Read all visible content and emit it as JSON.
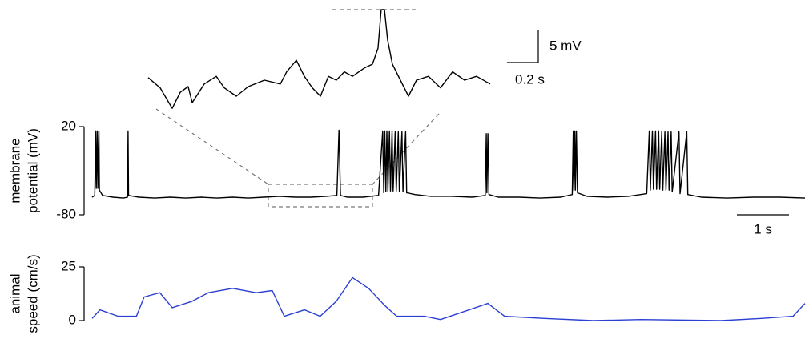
{
  "chart_data": [
    {
      "type": "line",
      "ylabel": [
        "membrane",
        "potential (mV)"
      ],
      "ylim": [
        -80,
        20
      ],
      "yticks": [
        20,
        -80
      ],
      "xlim": [
        0,
        13.69
      ],
      "scale_x": {
        "value": 1,
        "label": "1 s"
      },
      "series": [
        {
          "color": "#000000",
          "x": [
            0,
            0.05,
            0.07,
            0.08,
            0.1,
            0.11,
            0.13,
            0.14,
            0.2,
            0.4,
            0.6,
            0.68,
            0.69,
            0.7,
            0.9,
            1.2,
            1.5,
            1.8,
            2.1,
            2.4,
            2.7,
            3.0,
            3.3,
            3.6,
            3.9,
            4.2,
            4.5,
            4.7,
            4.74,
            4.77,
            4.9,
            5.2,
            5.5,
            5.58,
            5.6,
            5.62,
            5.64,
            5.66,
            5.68,
            5.71,
            5.73,
            5.76,
            5.78,
            5.82,
            5.84,
            5.88,
            5.9,
            5.95,
            5.97,
            6.02,
            6.04,
            6.2,
            6.5,
            6.9,
            7.3,
            7.55,
            7.57,
            7.58,
            7.6,
            7.62,
            7.8,
            8.2,
            8.6,
            9.0,
            9.22,
            9.24,
            9.25,
            9.27,
            9.28,
            9.3,
            9.32,
            9.5,
            9.9,
            10.3,
            10.65,
            10.7,
            10.72,
            10.76,
            10.78,
            10.82,
            10.84,
            10.88,
            10.9,
            10.94,
            10.96,
            11.0,
            11.02,
            11.06,
            11.08,
            11.12,
            11.14,
            11.27,
            11.29,
            11.42,
            11.44,
            11.7,
            12.2,
            12.7,
            13.2,
            13.69
          ],
          "values": [
            -60,
            -58,
            15,
            -50,
            15,
            -50,
            15,
            -52,
            -58,
            -60,
            -61,
            -60,
            15,
            -58,
            -60,
            -61,
            -60,
            -61,
            -60,
            -61,
            -60,
            -61,
            -60,
            -59,
            -60,
            -60,
            -59,
            -58,
            16,
            -58,
            -60,
            -60,
            -58,
            15,
            -55,
            15,
            -54,
            15,
            -54,
            15,
            -53,
            15,
            -53,
            14,
            -53,
            14,
            -54,
            14,
            -54,
            14,
            -55,
            -57,
            -59,
            -59,
            -60,
            -58,
            12,
            -55,
            12,
            -57,
            -60,
            -60,
            -61,
            -60,
            -57,
            15,
            -52,
            15,
            -52,
            15,
            -55,
            -59,
            -60,
            -59,
            -56,
            15,
            -52,
            15,
            -51,
            15,
            -51,
            15,
            -51,
            15,
            -52,
            14,
            -52,
            14,
            -52,
            14,
            -54,
            14,
            -56,
            14,
            -57,
            -60,
            -61,
            -60,
            -60,
            -61
          ]
        }
      ]
    },
    {
      "type": "line",
      "ylim": [
        -64.4,
        -48.4
      ],
      "xlim": [
        0,
        2.19
      ],
      "scale_x": {
        "value": 0.2,
        "label": "0.2 s"
      },
      "scale_y": {
        "value": 5,
        "label": "5 mV"
      },
      "series": [
        {
          "color": "#000000",
          "x": [
            0,
            0.077,
            0.154,
            0.205,
            0.256,
            0.282,
            0.359,
            0.436,
            0.487,
            0.564,
            0.641,
            0.744,
            0.846,
            0.887,
            0.949,
            1.0,
            1.051,
            1.103,
            1.154,
            1.205,
            1.256,
            1.308,
            1.385,
            1.436,
            1.472,
            1.492,
            1.513,
            1.533,
            1.564,
            1.615,
            1.667,
            1.718,
            1.795,
            1.872,
            1.949,
            2.026,
            2.103,
            2.19
          ],
          "values": [
            -59,
            -60.6,
            -63.8,
            -61.3,
            -60.4,
            -62.9,
            -60,
            -58.8,
            -60.6,
            -61.9,
            -60.4,
            -59.4,
            -60,
            -58.1,
            -56.3,
            -58.8,
            -60.6,
            -61.9,
            -58.8,
            -59.4,
            -58.1,
            -58.8,
            -57.5,
            -56.9,
            -54.4,
            -48.4,
            -48.4,
            -53.1,
            -56.9,
            -59.4,
            -61.9,
            -59.4,
            -58.8,
            -60.6,
            -58.1,
            -59.4,
            -58.8,
            -60
          ]
        }
      ]
    },
    {
      "type": "line",
      "ylabel": [
        "animal",
        "speed (cm/s)"
      ],
      "ylim": [
        0,
        25
      ],
      "yticks": [
        25,
        0
      ],
      "xlim": [
        0,
        13.69
      ],
      "series": [
        {
          "color": "#2a3fd4",
          "x": [
            0,
            0.15,
            0.5,
            0.85,
            1.0,
            1.3,
            1.54,
            1.92,
            2.23,
            2.7,
            3.15,
            3.46,
            3.69,
            4.08,
            4.38,
            4.69,
            5.0,
            5.31,
            5.62,
            5.85,
            6.38,
            6.69,
            7.6,
            7.92,
            8.69,
            9.62,
            10.54,
            12.08,
            12.85,
            13.46,
            13.69
          ],
          "values": [
            1,
            5,
            2,
            2,
            11,
            13,
            6,
            9,
            13,
            15,
            13,
            14,
            2,
            5,
            2,
            9,
            20,
            15,
            7,
            2,
            2,
            0.5,
            8,
            2,
            1,
            0,
            0.5,
            0,
            1,
            2,
            8
          ]
        }
      ]
    }
  ]
}
